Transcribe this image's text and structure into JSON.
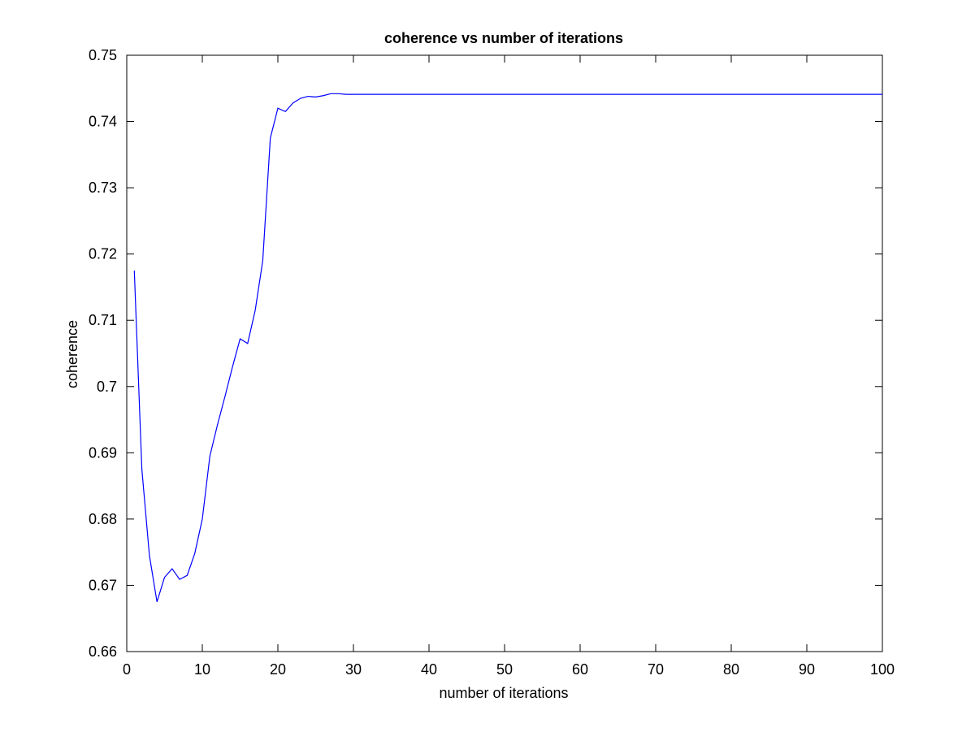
{
  "chart_data": {
    "type": "line",
    "title": "coherence vs number of iterations",
    "xlabel": "number of iterations",
    "ylabel": "coherence",
    "xlim": [
      0,
      100
    ],
    "ylim": [
      0.66,
      0.75
    ],
    "xticks": [
      0,
      10,
      20,
      30,
      40,
      50,
      60,
      70,
      80,
      90,
      100
    ],
    "yticks": [
      0.66,
      0.67,
      0.68,
      0.69,
      0.7,
      0.71,
      0.72,
      0.73,
      0.74,
      0.75
    ],
    "ytick_labels": [
      "0.66",
      "0.67",
      "0.68",
      "0.69",
      "0.7",
      "0.71",
      "0.72",
      "0.73",
      "0.74",
      "0.75"
    ],
    "grid": false,
    "legend": "none",
    "line_color": "#0000ff",
    "series": [
      {
        "x": [
          1,
          2,
          3,
          4,
          5,
          6,
          7,
          8,
          9,
          10,
          11,
          12,
          13,
          14,
          15,
          16,
          17,
          18,
          19,
          20,
          21,
          22,
          23,
          24,
          25,
          26,
          27,
          28,
          29,
          30,
          35,
          40,
          45,
          50,
          55,
          60,
          65,
          70,
          75,
          80,
          85,
          90,
          95,
          100
        ],
        "values": [
          0.7175,
          0.6875,
          0.6745,
          0.6675,
          0.6712,
          0.6725,
          0.6709,
          0.6715,
          0.6748,
          0.68,
          0.6895,
          0.6942,
          0.6985,
          0.703,
          0.7072,
          0.7065,
          0.7115,
          0.719,
          0.7375,
          0.742,
          0.7415,
          0.7428,
          0.7435,
          0.7438,
          0.7437,
          0.7439,
          0.7442,
          0.7442,
          0.7441,
          0.7441,
          0.7441,
          0.7441,
          0.7441,
          0.7441,
          0.7441,
          0.7441,
          0.7441,
          0.7441,
          0.7441,
          0.7441,
          0.7441,
          0.7441,
          0.7441,
          0.7441
        ]
      }
    ]
  }
}
